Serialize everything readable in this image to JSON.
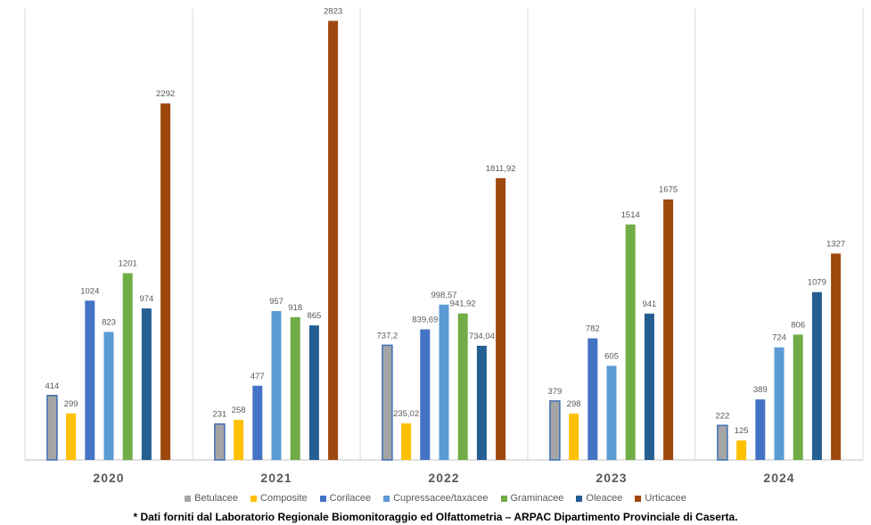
{
  "chart_data": {
    "type": "bar",
    "categories": [
      "2020",
      "2021",
      "2022",
      "2023",
      "2024"
    ],
    "ylim": [
      0,
      2900
    ],
    "grid": "vertical-only",
    "legend": "bottom",
    "series": [
      {
        "name": "Betulacee",
        "color": "#A5A5A5",
        "values": [
          414,
          231,
          737.2,
          379,
          222
        ],
        "labels": [
          "414",
          "231",
          "737,2",
          "379",
          "222"
        ]
      },
      {
        "name": "Composite",
        "color": "#FFC000",
        "values": [
          299,
          258,
          235.02,
          298,
          125
        ],
        "labels": [
          "299",
          "258",
          "235,02",
          "298",
          "125"
        ]
      },
      {
        "name": "Corilacee",
        "color": "#4472C4",
        "values": [
          1024,
          477,
          839.69,
          782,
          389
        ],
        "labels": [
          "1024",
          "477",
          "839,69",
          "782",
          "389"
        ]
      },
      {
        "name": "Cupressacee/taxacee",
        "color": "#5B9BD5",
        "values": [
          823,
          957,
          998.57,
          605,
          724
        ],
        "labels": [
          "823",
          "957",
          "998,57",
          "605",
          "724"
        ]
      },
      {
        "name": "Graminacee",
        "color": "#70AD47",
        "values": [
          1201,
          918,
          941.92,
          1514,
          806
        ],
        "labels": [
          "1201",
          "918",
          "941,92",
          "1514",
          "806"
        ]
      },
      {
        "name": "Oleacee",
        "color": "#255E91",
        "values": [
          974,
          865,
          734.04,
          941,
          1079
        ],
        "labels": [
          "974",
          "865",
          "734,04",
          "941",
          "1079"
        ]
      },
      {
        "name": "Urticacee",
        "color": "#9E480E",
        "values": [
          2292,
          2823,
          1811.92,
          1675,
          1327
        ],
        "labels": [
          "2292",
          "2823",
          "1811,92",
          "1675",
          "1327"
        ]
      }
    ]
  },
  "footnote": "* Dati forniti dal Laboratorio Regionale Biomonitoraggio ed Olfattometria – ARPAC Dipartimento Provinciale di Caserta."
}
